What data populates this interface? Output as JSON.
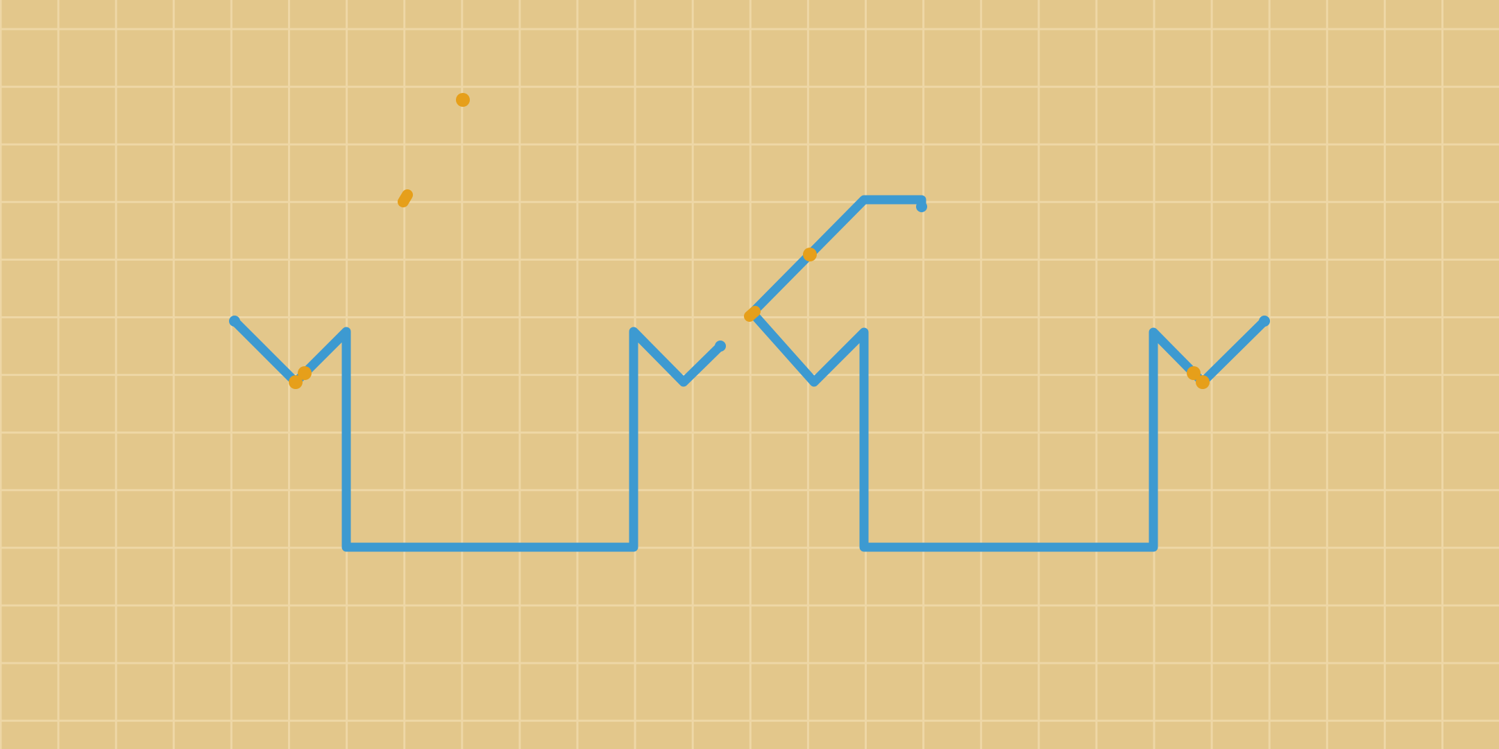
{
  "board": {
    "background_color": "#e3c78b",
    "grid_color": "#eed7a6",
    "grid_cells": {
      "columns": 26,
      "rows": 13
    }
  },
  "path": {
    "color": "#3d9ad1",
    "node_count": 19
  },
  "markers": {
    "color": "#e69f1a",
    "count": 9
  }
}
